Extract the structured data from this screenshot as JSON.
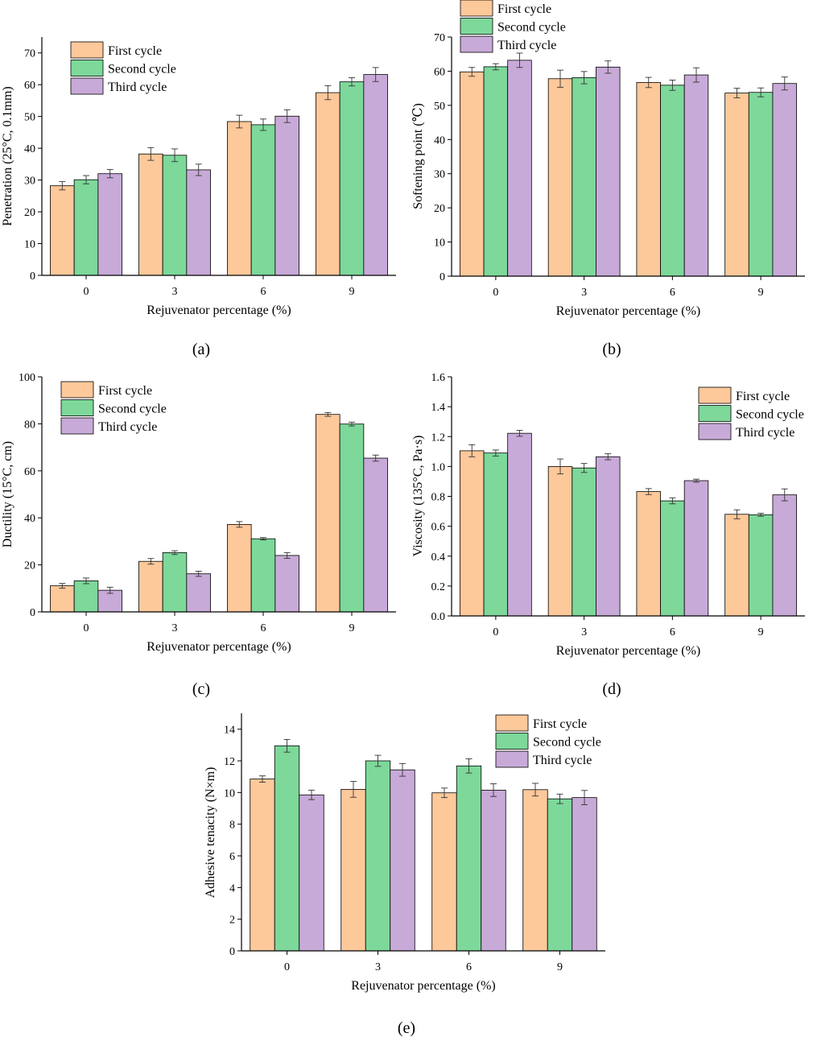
{
  "colors": {
    "first": "#fdc89a",
    "second": "#7dd89a",
    "third": "#c8aad8",
    "axis": "#000000"
  },
  "legend": [
    "First cycle",
    "Second cycle",
    "Third cycle"
  ],
  "chart_data": [
    {
      "id": "a",
      "panel_label": "(a)",
      "type": "bar",
      "categories": [
        "0",
        "3",
        "6",
        "9"
      ],
      "series": [
        {
          "name": "First cycle",
          "values": [
            28.2,
            38.2,
            48.4,
            57.5
          ],
          "errors": [
            1.3,
            2.0,
            2.0,
            2.2
          ]
        },
        {
          "name": "Second cycle",
          "values": [
            30.1,
            37.8,
            47.4,
            60.9
          ],
          "errors": [
            1.3,
            2.0,
            1.8,
            1.3
          ]
        },
        {
          "name": "Third cycle",
          "values": [
            32.0,
            33.2,
            50.1,
            63.2
          ],
          "errors": [
            1.3,
            1.8,
            2.0,
            2.2
          ]
        }
      ],
      "xlabel": "Rejuvenator percentage (%)",
      "ylabel": "Penetration (25°C, 0.1mm)",
      "ylim": [
        0,
        75
      ],
      "yticks": [
        0,
        10,
        20,
        30,
        40,
        50,
        60,
        70
      ],
      "legend_position": "top-left"
    },
    {
      "id": "b",
      "panel_label": "(b)",
      "type": "bar",
      "categories": [
        "0",
        "3",
        "6",
        "9"
      ],
      "series": [
        {
          "name": "First cycle",
          "values": [
            59.8,
            57.8,
            56.7,
            53.6
          ],
          "errors": [
            1.3,
            2.5,
            1.5,
            1.4
          ]
        },
        {
          "name": "Second cycle",
          "values": [
            61.3,
            58.1,
            55.9,
            53.8
          ],
          "errors": [
            0.9,
            1.8,
            1.5,
            1.3
          ]
        },
        {
          "name": "Third cycle",
          "values": [
            63.2,
            61.2,
            58.9,
            56.4
          ],
          "errors": [
            2.1,
            1.8,
            2.1,
            1.9
          ]
        }
      ],
      "xlabel": "Rejuvenator percentage (%)",
      "ylabel": "Softening point (℃)",
      "ylim": [
        0,
        70
      ],
      "yticks": [
        0,
        10,
        20,
        30,
        40,
        50,
        60,
        70
      ],
      "legend_position": "top-left"
    },
    {
      "id": "c",
      "panel_label": "(c)",
      "type": "bar",
      "categories": [
        "0",
        "3",
        "6",
        "9"
      ],
      "series": [
        {
          "name": "First cycle",
          "values": [
            11.1,
            21.5,
            37.2,
            84.0
          ],
          "errors": [
            1.0,
            1.2,
            1.2,
            0.8
          ]
        },
        {
          "name": "Second cycle",
          "values": [
            13.2,
            25.2,
            31.1,
            79.9
          ],
          "errors": [
            1.2,
            0.8,
            0.5,
            0.8
          ]
        },
        {
          "name": "Third cycle",
          "values": [
            9.2,
            16.2,
            24.0,
            65.4
          ],
          "errors": [
            1.3,
            1.1,
            1.2,
            1.3
          ]
        }
      ],
      "xlabel": "Rejuvenator percentage (%)",
      "ylabel": "Ductility (15°C, cm)",
      "ylim": [
        0,
        100
      ],
      "yticks": [
        0,
        20,
        40,
        60,
        80,
        100
      ],
      "legend_position": "top-left"
    },
    {
      "id": "d",
      "panel_label": "(d)",
      "type": "bar",
      "categories": [
        "0",
        "3",
        "6",
        "9"
      ],
      "series": [
        {
          "name": "First cycle",
          "values": [
            1.105,
            1.0,
            0.832,
            0.68
          ],
          "errors": [
            0.04,
            0.05,
            0.02,
            0.03
          ]
        },
        {
          "name": "Second cycle",
          "values": [
            1.09,
            0.99,
            0.77,
            0.677
          ],
          "errors": [
            0.02,
            0.03,
            0.02,
            0.01
          ]
        },
        {
          "name": "Third cycle",
          "values": [
            1.222,
            1.065,
            0.905,
            0.81
          ],
          "errors": [
            0.02,
            0.02,
            0.01,
            0.04
          ]
        }
      ],
      "xlabel": "Rejuvenator percentage (%)",
      "ylabel": "Viscosity (135°C, Pa·s)",
      "ylim": [
        0,
        1.6
      ],
      "yticks": [
        "0.0",
        "0.2",
        "0.4",
        "0.6",
        "0.8",
        "1.0",
        "1.2",
        "1.4",
        "1.6"
      ],
      "legend_position": "top-right"
    },
    {
      "id": "e",
      "panel_label": "(e)",
      "type": "bar",
      "categories": [
        "0",
        "3",
        "6",
        "9"
      ],
      "series": [
        {
          "name": "First cycle",
          "values": [
            10.85,
            10.2,
            9.98,
            10.18
          ],
          "errors": [
            0.2,
            0.5,
            0.3,
            0.4
          ]
        },
        {
          "name": "Second cycle",
          "values": [
            12.95,
            12.0,
            11.68,
            9.6
          ],
          "errors": [
            0.4,
            0.35,
            0.45,
            0.3
          ]
        },
        {
          "name": "Third cycle",
          "values": [
            9.85,
            11.43,
            10.15,
            9.68
          ],
          "errors": [
            0.3,
            0.4,
            0.4,
            0.45
          ]
        }
      ],
      "xlabel": "Rejuvenator percentage (%)",
      "ylabel": "Adhesive tenacity (N×m)",
      "ylim": [
        0,
        15
      ],
      "yticks": [
        0,
        2,
        4,
        6,
        8,
        10,
        12,
        14
      ],
      "legend_position": "top-right"
    }
  ]
}
